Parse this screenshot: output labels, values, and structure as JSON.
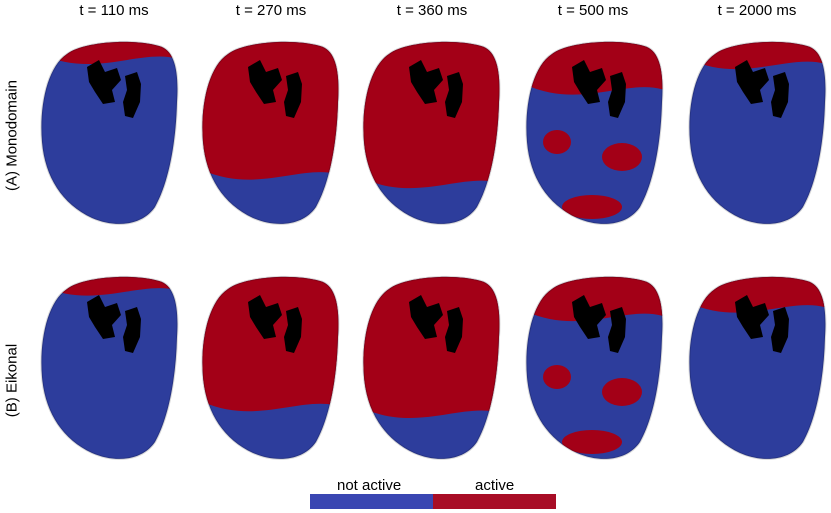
{
  "columns": [
    "t = 110 ms",
    "t = 270 ms",
    "t = 360 ms",
    "t = 500 ms",
    "t = 2000 ms"
  ],
  "rows": [
    "(A) Monodomain",
    "(B) Eikonal"
  ],
  "legend": {
    "not_active": "not active",
    "active": "active"
  },
  "colors": {
    "not_active": "#2d3d9c",
    "active": "#a30017",
    "legend_not_active": "#3a46b2",
    "legend_active": "#a80d26",
    "hole": "#000000"
  },
  "active_fraction": [
    [
      0.12,
      0.8,
      0.85,
      0.3,
      0.15
    ],
    [
      0.1,
      0.78,
      0.82,
      0.25,
      0.2
    ]
  ]
}
